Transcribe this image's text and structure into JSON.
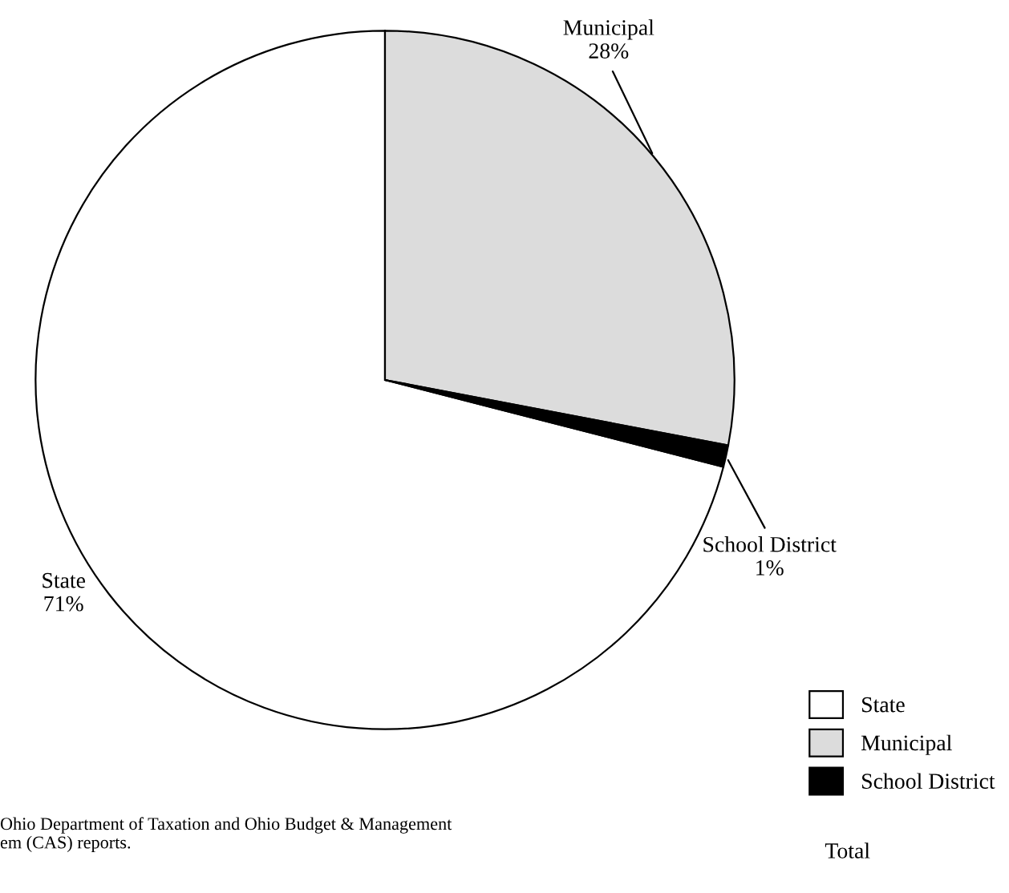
{
  "chart_data": {
    "type": "pie",
    "categories": [
      "State",
      "Municipal",
      "School District"
    ],
    "values": [
      71,
      28,
      1
    ],
    "colors": [
      "#ffffff",
      "#dcdcdc",
      "#000000"
    ],
    "value_labels": [
      "71%",
      "28%",
      "1%"
    ],
    "legend": "bottom right",
    "annotations": [
      "Ohio Department of Taxation and Ohio Budget & Management\nem (CAS) reports.",
      "Total"
    ]
  }
}
